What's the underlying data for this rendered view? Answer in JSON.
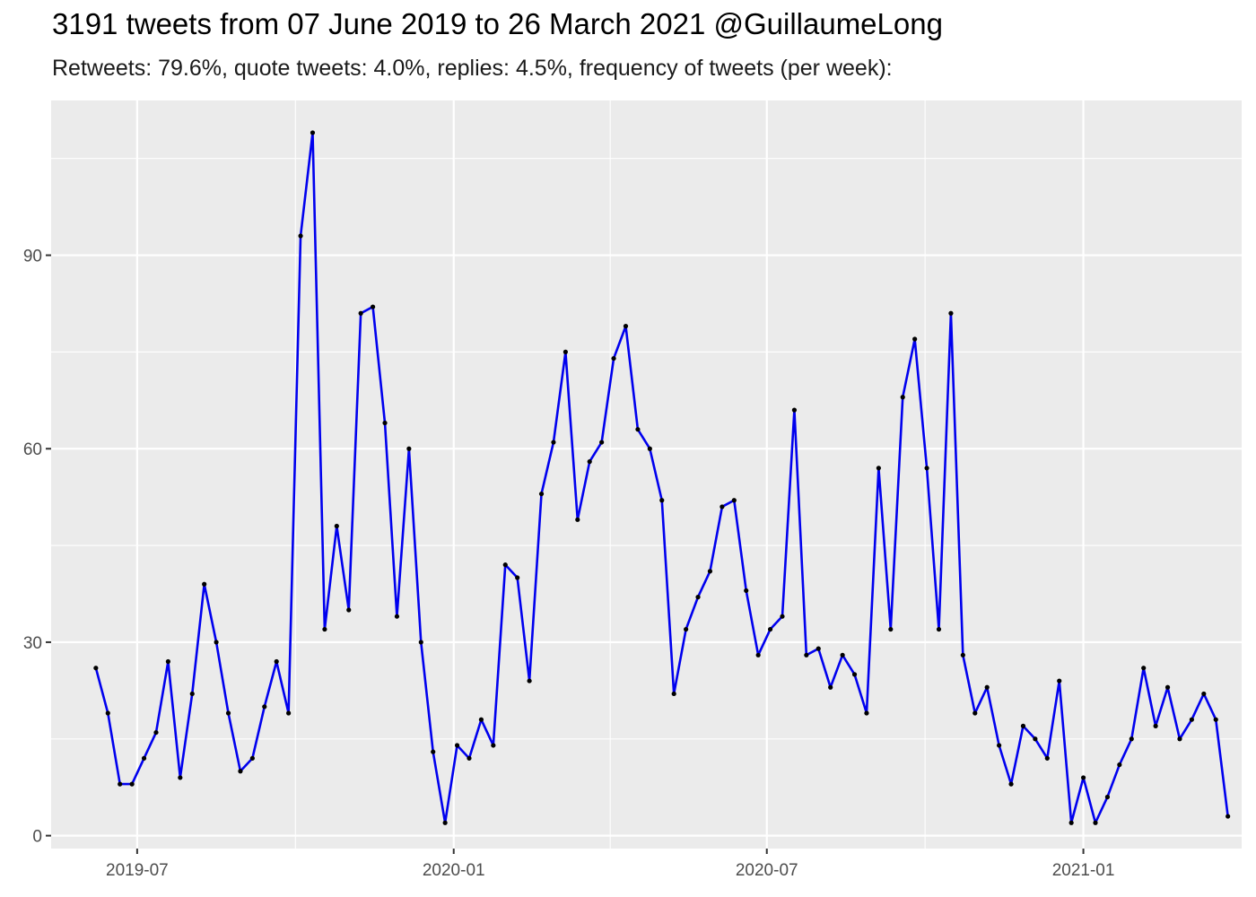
{
  "chart_data": {
    "type": "line",
    "title": "3191 tweets from 07 June 2019 to 26 March 2021 @GuillaumeLong",
    "subtitle": "Retweets: 79.6%, quote tweets: 4.0%, replies: 4.5%, frequency of tweets (per week):",
    "xlabel": "",
    "ylabel": "",
    "x_axis": {
      "type": "date",
      "range": [
        "2019-05-12",
        "2021-04-03"
      ],
      "ticks": [
        {
          "value": "2019-07-01",
          "label": "2019-07"
        },
        {
          "value": "2020-01-01",
          "label": "2020-01"
        },
        {
          "value": "2020-07-01",
          "label": "2020-07"
        },
        {
          "value": "2021-01-01",
          "label": "2021-01"
        }
      ]
    },
    "y_axis": {
      "range": [
        -2,
        114
      ],
      "ticks": [
        0,
        30,
        60,
        90
      ],
      "minor_ticks": [
        15,
        45,
        75,
        105
      ]
    },
    "grid": true,
    "panel_color": "#EBEBEB",
    "grid_color": "#FFFFFF",
    "series": [
      {
        "color": "#0000EE",
        "point_color": "#000000",
        "x": [
          "2019-06-07",
          "2019-06-14",
          "2019-06-21",
          "2019-06-28",
          "2019-07-05",
          "2019-07-12",
          "2019-07-19",
          "2019-07-26",
          "2019-08-02",
          "2019-08-09",
          "2019-08-16",
          "2019-08-23",
          "2019-08-30",
          "2019-09-06",
          "2019-09-13",
          "2019-09-20",
          "2019-09-27",
          "2019-10-04",
          "2019-10-11",
          "2019-10-18",
          "2019-10-25",
          "2019-11-01",
          "2019-11-08",
          "2019-11-15",
          "2019-11-22",
          "2019-11-29",
          "2019-12-06",
          "2019-12-13",
          "2019-12-20",
          "2019-12-27",
          "2020-01-03",
          "2020-01-10",
          "2020-01-17",
          "2020-01-24",
          "2020-01-31",
          "2020-02-07",
          "2020-02-14",
          "2020-02-21",
          "2020-02-28",
          "2020-03-06",
          "2020-03-13",
          "2020-03-20",
          "2020-03-27",
          "2020-04-03",
          "2020-04-10",
          "2020-04-17",
          "2020-04-24",
          "2020-05-01",
          "2020-05-08",
          "2020-05-15",
          "2020-05-22",
          "2020-05-29",
          "2020-06-05",
          "2020-06-12",
          "2020-06-19",
          "2020-06-26",
          "2020-07-03",
          "2020-07-10",
          "2020-07-17",
          "2020-07-24",
          "2020-07-31",
          "2020-08-07",
          "2020-08-14",
          "2020-08-21",
          "2020-08-28",
          "2020-09-04",
          "2020-09-11",
          "2020-09-18",
          "2020-09-25",
          "2020-10-02",
          "2020-10-09",
          "2020-10-16",
          "2020-10-23",
          "2020-10-30",
          "2020-11-06",
          "2020-11-13",
          "2020-11-20",
          "2020-11-27",
          "2020-12-04",
          "2020-12-11",
          "2020-12-18",
          "2020-12-25",
          "2021-01-01",
          "2021-01-08",
          "2021-01-15",
          "2021-01-22",
          "2021-01-29",
          "2021-02-05",
          "2021-02-12",
          "2021-02-19",
          "2021-02-26",
          "2021-03-05",
          "2021-03-12",
          "2021-03-19",
          "2021-03-26"
        ],
        "y": [
          26,
          19,
          8,
          8,
          12,
          16,
          27,
          9,
          22,
          39,
          30,
          19,
          10,
          12,
          20,
          27,
          19,
          93,
          109,
          32,
          48,
          35,
          81,
          82,
          64,
          34,
          60,
          30,
          13,
          2,
          14,
          12,
          18,
          14,
          42,
          40,
          24,
          53,
          61,
          75,
          49,
          58,
          61,
          74,
          79,
          63,
          60,
          52,
          22,
          32,
          37,
          41,
          51,
          52,
          38,
          28,
          32,
          34,
          66,
          28,
          29,
          23,
          28,
          25,
          19,
          57,
          32,
          68,
          77,
          57,
          32,
          81,
          28,
          19,
          23,
          14,
          8,
          17,
          15,
          12,
          24,
          2,
          9,
          2,
          6,
          11,
          15,
          26,
          17,
          23,
          15,
          18,
          22,
          18,
          3
        ]
      }
    ]
  }
}
